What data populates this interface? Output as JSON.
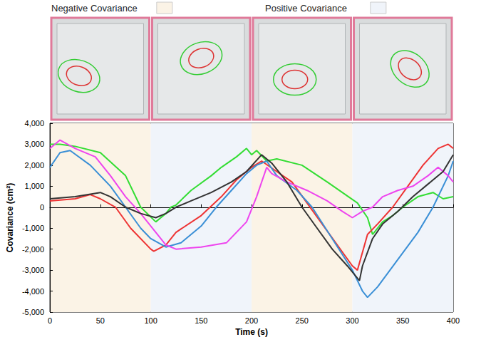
{
  "chart_data": {
    "type": "line",
    "xlabel": "Time (s)",
    "ylabel": "Covariance (cm²)",
    "xlim": [
      0,
      400
    ],
    "xticks": [
      0,
      50,
      100,
      150,
      200,
      250,
      300,
      350,
      400
    ],
    "ylim": [
      -5000,
      4000
    ],
    "yticks": [
      -5000,
      -4000,
      -3000,
      -2000,
      -1000,
      0,
      1000,
      2000,
      3000,
      4000
    ],
    "grid": false,
    "shaded_regions": [
      {
        "name": "Negative Covariance",
        "color": "#fbf3e6",
        "ranges": [
          [
            0,
            100
          ],
          [
            200,
            300
          ]
        ]
      },
      {
        "name": "Positive Covariance",
        "color": "#f0f4fa",
        "ranges": [
          [
            100,
            200
          ],
          [
            300,
            400
          ]
        ]
      }
    ],
    "series": [
      {
        "color": "#33dd33",
        "x": [
          0,
          10,
          25,
          50,
          75,
          90,
          105,
          110,
          115,
          120,
          125,
          140,
          160,
          170,
          185,
          195,
          200,
          205,
          215,
          225,
          250,
          275,
          290,
          305,
          315,
          320,
          330,
          340,
          350,
          365,
          380,
          390,
          400
        ],
        "values": [
          3000,
          3000,
          2900,
          2600,
          1500,
          0,
          -700,
          -500,
          -300,
          0,
          100,
          800,
          1500,
          1900,
          2400,
          2800,
          2500,
          2700,
          2200,
          2300,
          2000,
          1200,
          700,
          200,
          -500,
          -1300,
          -700,
          -400,
          0,
          500,
          700,
          400,
          500
        ]
      },
      {
        "color": "#ee3333",
        "x": [
          0,
          25,
          40,
          50,
          65,
          80,
          100,
          103,
          115,
          125,
          150,
          170,
          185,
          200,
          210,
          225,
          240,
          255,
          270,
          285,
          300,
          305,
          315,
          325,
          340,
          355,
          370,
          385,
          395,
          400
        ],
        "values": [
          300,
          400,
          600,
          400,
          0,
          -1000,
          -2000,
          -2100,
          -1800,
          -1200,
          -400,
          500,
          1300,
          1900,
          2200,
          1700,
          1200,
          200,
          -800,
          -1800,
          -2800,
          -3000,
          -1300,
          -800,
          0,
          1000,
          2000,
          2800,
          3000,
          2800
        ]
      },
      {
        "color": "#3a8fd6",
        "x": [
          0,
          10,
          20,
          40,
          60,
          75,
          90,
          100,
          115,
          130,
          150,
          165,
          180,
          195,
          205,
          215,
          225,
          245,
          260,
          280,
          300,
          310,
          315,
          325,
          345,
          365,
          380,
          395,
          400
        ],
        "values": [
          1900,
          2600,
          2700,
          2000,
          1000,
          0,
          -1000,
          -1500,
          -1900,
          -1700,
          -900,
          0,
          800,
          1600,
          2000,
          2200,
          1500,
          800,
          0,
          -1500,
          -3000,
          -4000,
          -4300,
          -3800,
          -2500,
          -1200,
          0,
          1500,
          2200
        ]
      },
      {
        "color": "#ee44ee",
        "x": [
          0,
          10,
          25,
          45,
          60,
          75,
          90,
          105,
          115,
          125,
          150,
          175,
          195,
          205,
          215,
          220,
          235,
          255,
          275,
          290,
          300,
          310,
          320,
          330,
          345,
          360,
          375,
          385,
          395,
          400
        ],
        "values": [
          2800,
          3200,
          2800,
          2400,
          1500,
          500,
          -300,
          -1200,
          -1800,
          -2000,
          -1900,
          -1700,
          -700,
          500,
          1900,
          1600,
          1200,
          800,
          300,
          -200,
          -500,
          -200,
          0,
          500,
          800,
          1000,
          1500,
          1900,
          1500,
          1200
        ]
      },
      {
        "color": "#333333",
        "x": [
          0,
          25,
          50,
          60,
          75,
          90,
          105,
          115,
          125,
          140,
          160,
          180,
          195,
          210,
          220,
          235,
          250,
          265,
          280,
          295,
          307,
          310,
          320,
          330,
          345,
          360,
          375,
          390,
          400
        ],
        "values": [
          400,
          500,
          700,
          500,
          0,
          -300,
          -500,
          -300,
          0,
          300,
          700,
          1200,
          1700,
          2500,
          2100,
          1200,
          0,
          -1000,
          -2000,
          -2800,
          -3500,
          -2800,
          -1500,
          -800,
          -200,
          500,
          1100,
          1700,
          2500
        ]
      }
    ]
  }
}
